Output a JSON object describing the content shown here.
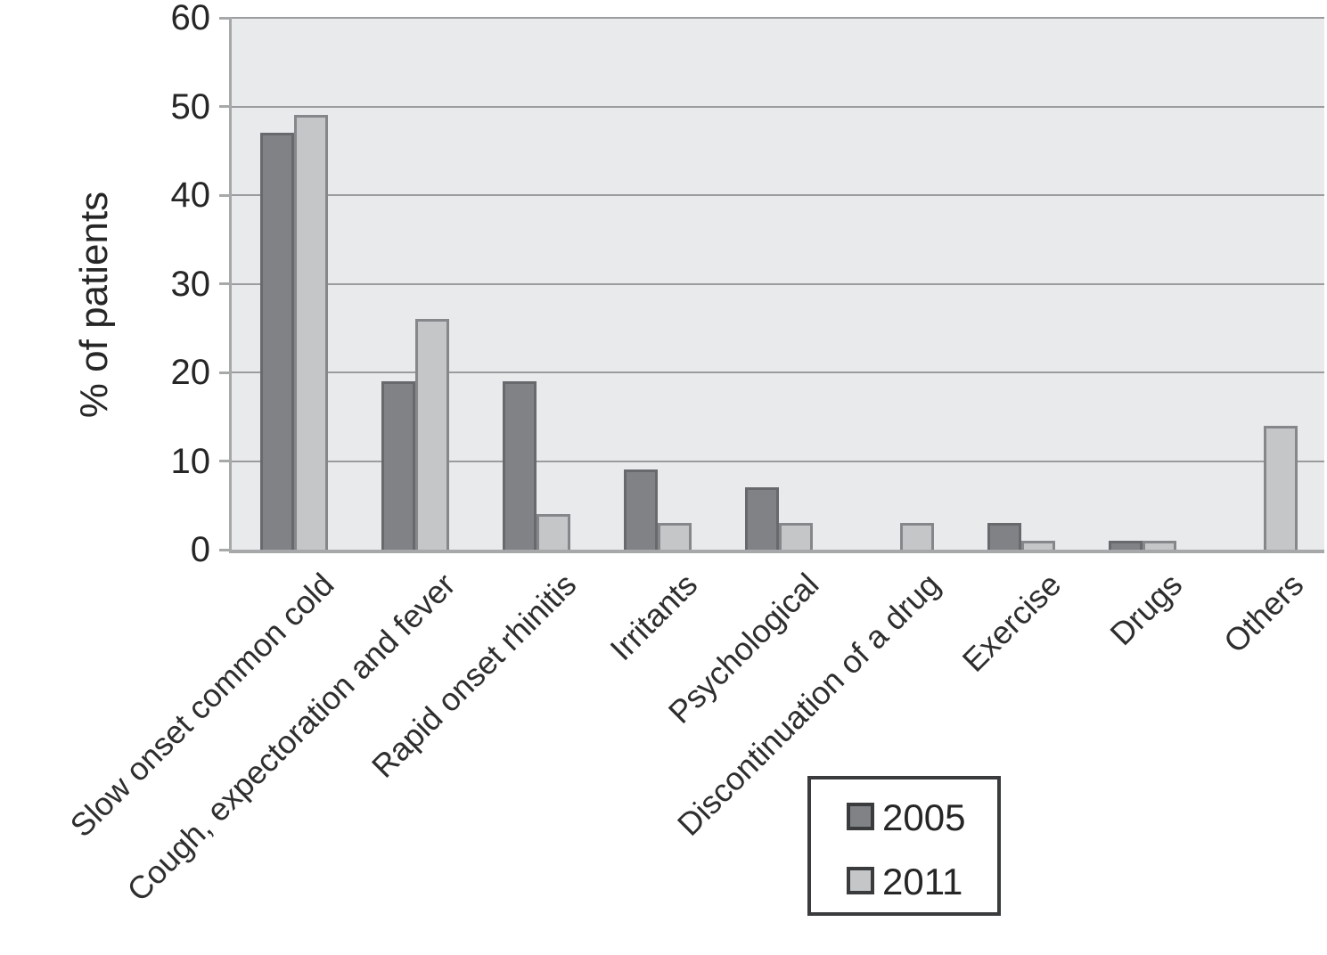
{
  "chart_data": {
    "type": "bar",
    "title": "",
    "xlabel": "",
    "ylabel": "% of patients",
    "ylim": [
      0,
      60
    ],
    "yticks": [
      0,
      10,
      20,
      30,
      40,
      50,
      60
    ],
    "grid": true,
    "legend_position": "bottom-right",
    "categories": [
      "Slow onset common cold",
      "Cough, expectoration and fever",
      "Rapid onset rhinitis",
      "Irritants",
      "Psychological",
      "Discontinuation of a drug",
      "Exercise",
      "Drugs",
      "Others"
    ],
    "series": [
      {
        "name": "2005",
        "color": "#808286",
        "border_color": "#67696d",
        "values": [
          47,
          19,
          19,
          9,
          7,
          0,
          3,
          1,
          0
        ]
      },
      {
        "name": "2011",
        "color": "#c5c6c8",
        "border_color": "#85878a",
        "values": [
          49,
          26,
          4,
          3,
          3,
          3,
          1,
          1,
          14
        ]
      }
    ],
    "colors": {
      "plot_background": "#e9eaec",
      "gridline": "#9b9c9e",
      "axis": "#a7a8aa",
      "text": "#2b2b2b",
      "legend_border": "#3a3b3d"
    }
  }
}
